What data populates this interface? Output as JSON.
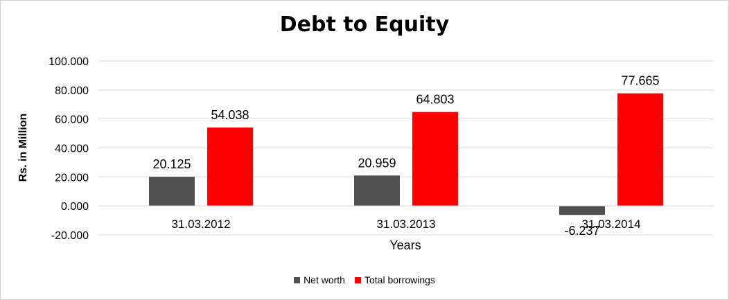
{
  "chart_data": {
    "type": "bar",
    "title": "Debt to Equity",
    "xlabel": "Years",
    "ylabel": "Rs. in Million",
    "categories": [
      "31.03.2012",
      "31.03.2013",
      "31.03.2014"
    ],
    "series": [
      {
        "name": "Net worth",
        "values": [
          20.125,
          20.959,
          -6.237
        ],
        "color": "#505050"
      },
      {
        "name": "Total borrowings",
        "values": [
          54.038,
          64.803,
          77.665
        ],
        "color": "#ff0000"
      }
    ],
    "value_labels": [
      [
        "20.125",
        "20.959",
        "-6.237"
      ],
      [
        "54.038",
        "64.803",
        "77.665"
      ]
    ],
    "ylim": [
      -20,
      100
    ],
    "yticks": [
      -20,
      0,
      20,
      40,
      60,
      80,
      100
    ],
    "ytick_labels": [
      "-20.000",
      "0.000",
      "20.000",
      "40.000",
      "60.000",
      "80.000",
      "100.000"
    ],
    "grid": true,
    "legend_position": "bottom"
  }
}
